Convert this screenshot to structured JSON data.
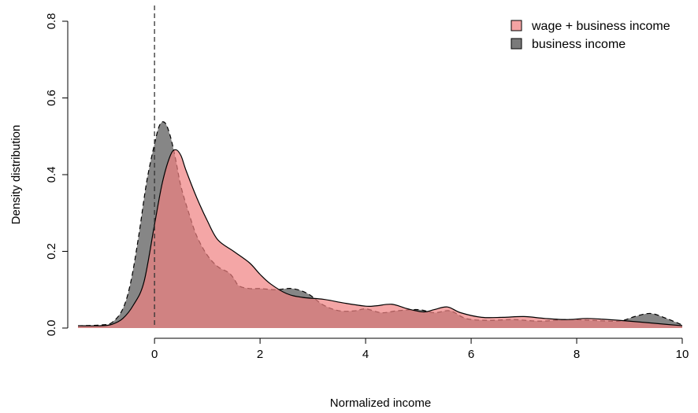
{
  "chart_data": {
    "type": "area",
    "title": "",
    "xlabel": "Normalized income",
    "ylabel": "Density distribution",
    "xlim": [
      -1.45,
      10.0
    ],
    "ylim": [
      0,
      0.8
    ],
    "x_ticks": [
      0,
      2,
      4,
      6,
      8,
      10
    ],
    "y_ticks": [
      0.0,
      0.2,
      0.4,
      0.6,
      0.8
    ],
    "x_tick_labels": [
      "0",
      "2",
      "4",
      "6",
      "8",
      "10"
    ],
    "y_tick_labels": [
      "0.0",
      "0.2",
      "0.4",
      "0.6",
      "0.8"
    ],
    "reference_line": {
      "x": 0,
      "style": "dashed"
    },
    "legend_position": "top-right",
    "grid": false,
    "series": [
      {
        "name": "business income",
        "fill_color": "#808080",
        "line_style": "dashed",
        "points": [
          [
            -1.45,
            0.006
          ],
          [
            -1.0,
            0.008
          ],
          [
            -0.8,
            0.015
          ],
          [
            -0.6,
            0.05
          ],
          [
            -0.45,
            0.12
          ],
          [
            -0.3,
            0.24
          ],
          [
            -0.15,
            0.38
          ],
          [
            0.0,
            0.48
          ],
          [
            0.1,
            0.53
          ],
          [
            0.2,
            0.535
          ],
          [
            0.3,
            0.5
          ],
          [
            0.4,
            0.44
          ],
          [
            0.5,
            0.37
          ],
          [
            0.65,
            0.3
          ],
          [
            0.8,
            0.24
          ],
          [
            1.0,
            0.19
          ],
          [
            1.2,
            0.16
          ],
          [
            1.4,
            0.145
          ],
          [
            1.5,
            0.13
          ],
          [
            1.6,
            0.11
          ],
          [
            1.8,
            0.103
          ],
          [
            2.0,
            0.103
          ],
          [
            2.3,
            0.1
          ],
          [
            2.6,
            0.103
          ],
          [
            2.9,
            0.09
          ],
          [
            3.2,
            0.06
          ],
          [
            3.5,
            0.045
          ],
          [
            3.8,
            0.045
          ],
          [
            4.0,
            0.05
          ],
          [
            4.3,
            0.04
          ],
          [
            4.6,
            0.045
          ],
          [
            5.0,
            0.048
          ],
          [
            5.3,
            0.04
          ],
          [
            5.6,
            0.045
          ],
          [
            5.9,
            0.025
          ],
          [
            6.3,
            0.02
          ],
          [
            6.8,
            0.022
          ],
          [
            7.3,
            0.018
          ],
          [
            7.8,
            0.022
          ],
          [
            8.3,
            0.02
          ],
          [
            8.8,
            0.018
          ],
          [
            9.1,
            0.03
          ],
          [
            9.4,
            0.038
          ],
          [
            9.7,
            0.025
          ],
          [
            10.0,
            0.008
          ]
        ]
      },
      {
        "name": "wage + business income",
        "fill_color": "#f08080",
        "line_style": "solid",
        "points": [
          [
            -1.45,
            0.006
          ],
          [
            -1.0,
            0.006
          ],
          [
            -0.8,
            0.01
          ],
          [
            -0.6,
            0.025
          ],
          [
            -0.4,
            0.06
          ],
          [
            -0.2,
            0.12
          ],
          [
            0.0,
            0.27
          ],
          [
            0.15,
            0.38
          ],
          [
            0.3,
            0.45
          ],
          [
            0.4,
            0.465
          ],
          [
            0.5,
            0.45
          ],
          [
            0.6,
            0.41
          ],
          [
            0.8,
            0.34
          ],
          [
            1.0,
            0.28
          ],
          [
            1.2,
            0.23
          ],
          [
            1.5,
            0.2
          ],
          [
            1.8,
            0.17
          ],
          [
            2.0,
            0.14
          ],
          [
            2.2,
            0.115
          ],
          [
            2.5,
            0.09
          ],
          [
            2.8,
            0.08
          ],
          [
            3.2,
            0.075
          ],
          [
            3.6,
            0.065
          ],
          [
            4.0,
            0.057
          ],
          [
            4.2,
            0.058
          ],
          [
            4.5,
            0.062
          ],
          [
            4.8,
            0.05
          ],
          [
            5.1,
            0.042
          ],
          [
            5.3,
            0.048
          ],
          [
            5.55,
            0.055
          ],
          [
            5.8,
            0.04
          ],
          [
            6.2,
            0.028
          ],
          [
            6.6,
            0.028
          ],
          [
            7.0,
            0.03
          ],
          [
            7.4,
            0.025
          ],
          [
            7.8,
            0.022
          ],
          [
            8.2,
            0.025
          ],
          [
            8.6,
            0.022
          ],
          [
            9.0,
            0.018
          ],
          [
            9.5,
            0.012
          ],
          [
            10.0,
            0.006
          ]
        ]
      }
    ]
  }
}
